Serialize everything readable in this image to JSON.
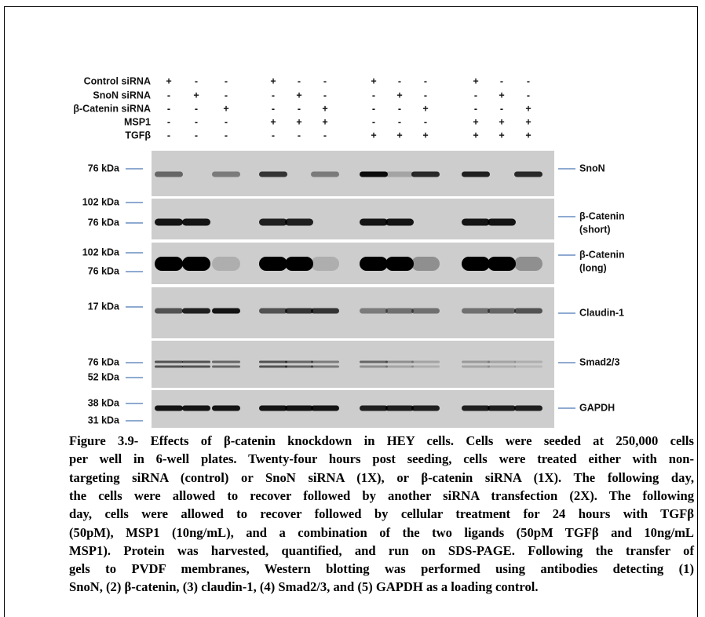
{
  "treatments": [
    {
      "label": "Control siRNA",
      "marks": [
        "+",
        "-",
        "-",
        "+",
        "-",
        "-",
        "+",
        "-",
        "-",
        "+",
        "-",
        "-"
      ]
    },
    {
      "label": "SnoN siRNA",
      "marks": [
        "-",
        "+",
        "-",
        "-",
        "+",
        "-",
        "-",
        "+",
        "-",
        "-",
        "+",
        "-"
      ]
    },
    {
      "label": "β-Catenin siRNA",
      "marks": [
        "-",
        "-",
        "+",
        "-",
        "-",
        "+",
        "-",
        "-",
        "+",
        "-",
        "-",
        "+"
      ]
    },
    {
      "label": "MSP1",
      "marks": [
        "-",
        "-",
        "-",
        "+",
        "+",
        "+",
        "-",
        "-",
        "-",
        "+",
        "+",
        "+"
      ]
    },
    {
      "label": "TGFβ",
      "marks": [
        "-",
        "-",
        "-",
        "-",
        "-",
        "-",
        "+",
        "+",
        "+",
        "+",
        "+",
        "+"
      ]
    }
  ],
  "panels": [
    {
      "markers": [
        "76 kDa"
      ],
      "protein": [
        "SnoN"
      ]
    },
    {
      "markers": [
        "102 kDa",
        "76 kDa"
      ],
      "protein": [
        "β-Catenin",
        "(short)"
      ]
    },
    {
      "markers": [
        "102 kDa",
        "76 kDa"
      ],
      "protein": [
        "β-Catenin",
        "(long)"
      ]
    },
    {
      "markers": [
        "17 kDa"
      ],
      "protein": [
        "Claudin-1"
      ]
    },
    {
      "markers": [
        "76 kDa",
        "52 kDa"
      ],
      "protein": [
        "Smad2/3"
      ]
    },
    {
      "markers": [
        "38 kDa",
        "31 kDa"
      ],
      "protein": [
        "GAPDH"
      ]
    }
  ],
  "caption": [
    "Figure 3.9- Effects of β-catenin knockdown in HEY cells.  Cells were seeded at 250,000 cells",
    "per well in 6-well plates. Twenty-four hours post seeding, cells were treated either with non-",
    "targeting siRNA (control) or SnoN siRNA (1X), or β-catenin siRNA (1X). The following day,",
    "the cells were allowed to recover followed by another siRNA transfection (2X). The following",
    "day, cells were allowed to recover followed by cellular treatment for 24 hours with TGFβ",
    "(50pM), MSP1 (10ng/mL), and a combination of the two ligands (50pM TGFβ and 10ng/mL",
    "MSP1). Protein was harvested, quantified, and run on SDS-PAGE.  Following the transfer of",
    "gels to PVDF membranes, Western blotting was performed using antibodies detecting (1)",
    "SnoN, (2) β-catenin, (3) claudin-1, (4) Smad2/3, and (5) GAPDH as a loading control."
  ]
}
